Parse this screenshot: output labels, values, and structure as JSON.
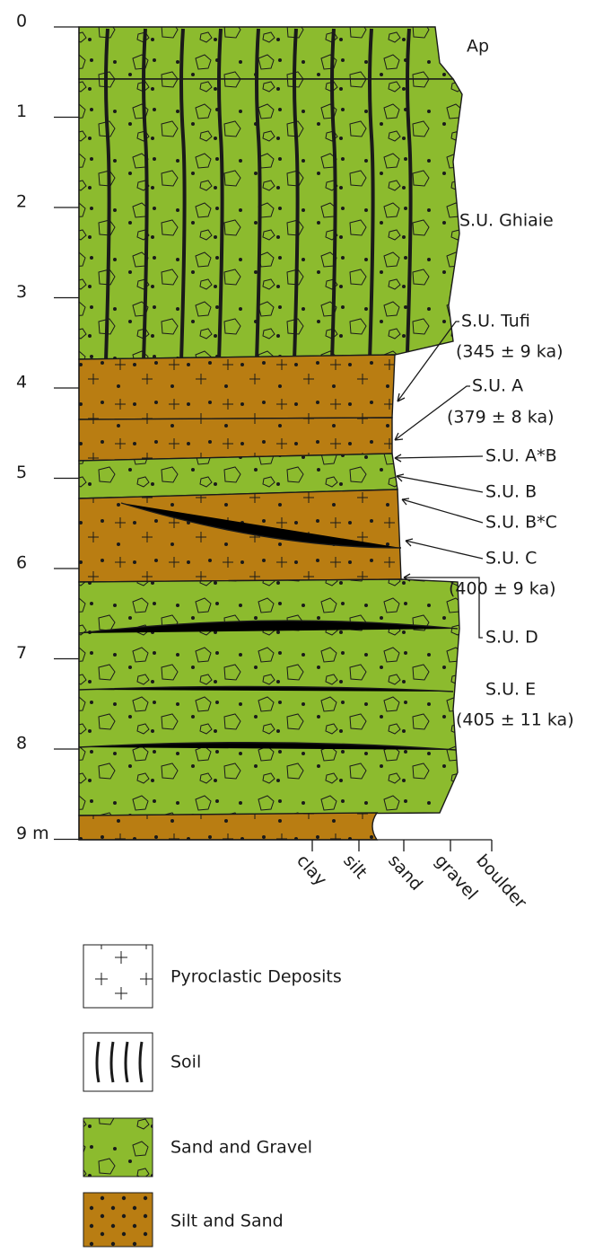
{
  "depth_axis": {
    "labels": [
      "0",
      "1",
      "2",
      "3",
      "4",
      "5",
      "6",
      "7",
      "8",
      "9 m"
    ]
  },
  "units": [
    {
      "label": "Ap"
    },
    {
      "label": "S.U. Ghiaie"
    },
    {
      "label": "S.U. Tufi",
      "age": "(345 ± 9 ka)"
    },
    {
      "label": "S.U. A",
      "age": "(379 ± 8 ka)"
    },
    {
      "label": "S.U. A*B"
    },
    {
      "label": "S.U. B"
    },
    {
      "label": "S.U. B*C"
    },
    {
      "label": "S.U. C",
      "age": "(400 ± 9 ka)"
    },
    {
      "label": "S.U. D"
    },
    {
      "label": "S.U. E",
      "age": "(405 ± 11 ka)"
    }
  ],
  "grain_size_axis": {
    "labels": [
      "clay",
      "silt",
      "sand",
      "gravel",
      "boulder"
    ]
  },
  "legend": {
    "items": [
      "Pyroclastic Deposits",
      "Soil",
      "Sand and Gravel",
      "Silt and Sand"
    ]
  }
}
